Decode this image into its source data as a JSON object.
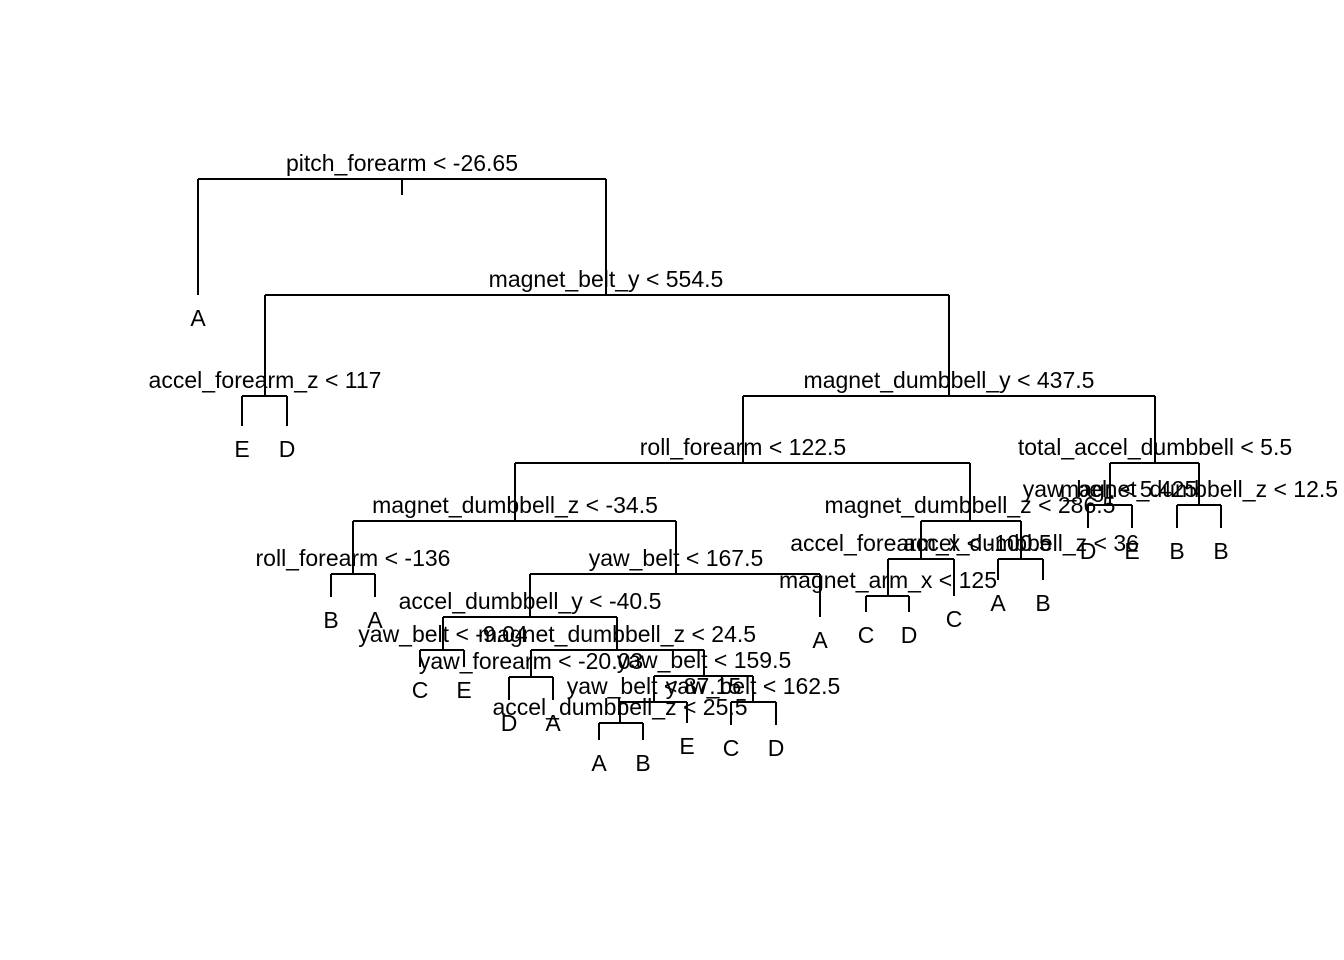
{
  "tree": {
    "label": "pitch_forearm < -26.65",
    "children": [
      {
        "label": "A"
      },
      {
        "label": "magnet_belt_y < 554.5",
        "children": [
          {
            "label": "accel_forearm_z < 117",
            "children": [
              {
                "label": "E"
              },
              {
                "label": "D"
              }
            ]
          },
          {
            "label": "magnet_dumbbell_y < 437.5",
            "children": [
              {
                "label": "roll_forearm < 122.5",
                "children": [
                  {
                    "label": "magnet_dumbbell_z < -34.5",
                    "children": [
                      {
                        "label": "roll_forearm < -136",
                        "children": [
                          {
                            "label": "B"
                          },
                          {
                            "label": "A"
                          }
                        ]
                      },
                      {
                        "label": "yaw_belt < 167.5",
                        "children": [
                          {
                            "label": "accel_dumbbell_y < -40.5",
                            "children": [
                              {
                                "label": "yaw_belt < -9.04",
                                "children": [
                                  {
                                    "label": "C"
                                  },
                                  {
                                    "label": "E"
                                  }
                                ]
                              },
                              {
                                "label": "magnet_dumbbell_z < 24.5",
                                "children": [
                                  {
                                    "label": "yaw_forearm < -20.03",
                                    "children": [
                                      {
                                        "label": "D"
                                      },
                                      {
                                        "label": "A"
                                      }
                                    ]
                                  },
                                  {
                                    "label": "yaw_belt < 159.5",
                                    "children": [
                                      {
                                        "label": "yaw_belt < 87.15",
                                        "children": [
                                          {
                                            "label": "accel_dumbbell_z < 25.5",
                                            "children": [
                                              {
                                                "label": "A"
                                              },
                                              {
                                                "label": "B"
                                              }
                                            ]
                                          },
                                          {
                                            "label": "E"
                                          }
                                        ]
                                      },
                                      {
                                        "label": "yaw_belt < 162.5",
                                        "children": [
                                          {
                                            "label": "C"
                                          },
                                          {
                                            "label": "D"
                                          }
                                        ]
                                      }
                                    ]
                                  }
                                ]
                              }
                            ]
                          },
                          {
                            "label": "A"
                          }
                        ]
                      }
                    ]
                  },
                  {
                    "label": "magnet_dumbbell_z < 286.5",
                    "children": [
                      {
                        "label": "accel_forearm_x < -100.5",
                        "children": [
                          {
                            "label": "magnet_arm_x < 125",
                            "children": [
                              {
                                "label": "C"
                              },
                              {
                                "label": "D"
                              }
                            ]
                          },
                          {
                            "label": "C"
                          }
                        ]
                      },
                      {
                        "label": "accel_dumbbell_z < 36",
                        "children": [
                          {
                            "label": "A"
                          },
                          {
                            "label": "B"
                          }
                        ]
                      }
                    ]
                  }
                ]
              },
              {
                "label": "total_accel_dumbbell < 5.5",
                "children": [
                  {
                    "label": "yaw_belt < 5.425",
                    "children": [
                      {
                        "label": "D"
                      },
                      {
                        "label": "E"
                      }
                    ]
                  },
                  {
                    "label": "magnet_dumbbell_z < 12.5",
                    "children": [
                      {
                        "label": "B"
                      },
                      {
                        "label": "B"
                      }
                    ]
                  }
                ]
              }
            ]
          }
        ]
      }
    ]
  }
}
